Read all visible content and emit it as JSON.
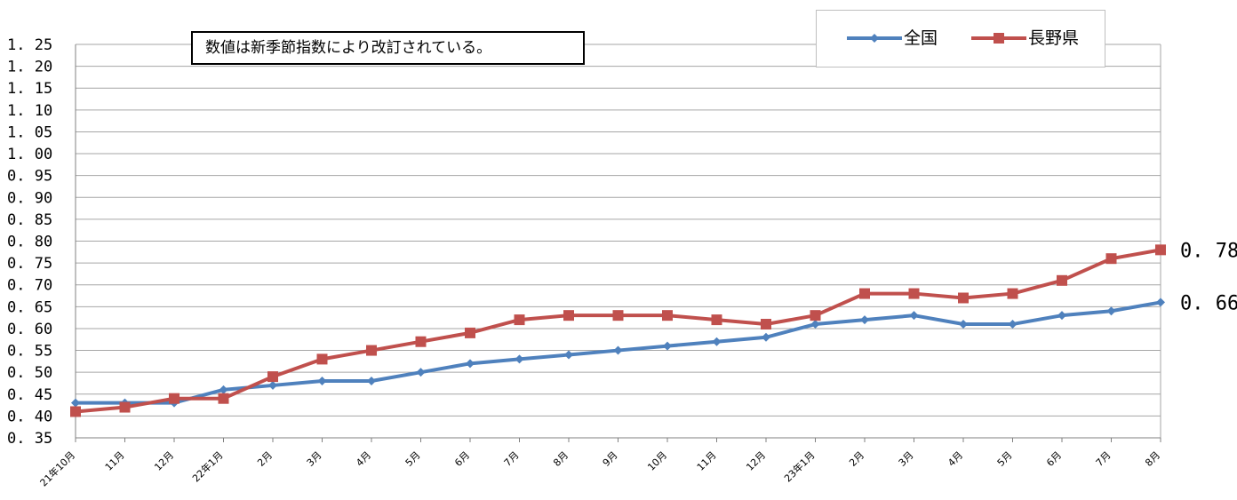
{
  "chart_data": {
    "type": "line",
    "title": "",
    "xlabel": "",
    "ylabel": "",
    "ylim": [
      0.35,
      1.25
    ],
    "ytick_step": 0.05,
    "grid": true,
    "legend_placement": "top-right",
    "annotation": "数値は新季節指数により改訂されている。",
    "categories": [
      "21年10月",
      "11月",
      "12月",
      "22年1月",
      "2月",
      "3月",
      "4月",
      "5月",
      "6月",
      "7月",
      "8月",
      "9月",
      "10月",
      "11月",
      "12月",
      "23年1月",
      "2月",
      "3月",
      "4月",
      "5月",
      "6月",
      "7月",
      "8月"
    ],
    "series": [
      {
        "name": "全国",
        "color": "#4f81bd",
        "marker": "diamond",
        "values": [
          0.43,
          0.43,
          0.43,
          0.46,
          0.47,
          0.48,
          0.48,
          0.5,
          0.52,
          0.53,
          0.54,
          0.55,
          0.56,
          0.57,
          0.58,
          0.61,
          0.62,
          0.63,
          0.61,
          0.61,
          0.63,
          0.64,
          0.66
        ],
        "end_label": "0. 66"
      },
      {
        "name": "長野県",
        "color": "#c0504d",
        "marker": "square",
        "values": [
          0.41,
          0.42,
          0.44,
          0.44,
          0.49,
          0.53,
          0.55,
          0.57,
          0.59,
          0.62,
          0.63,
          0.63,
          0.63,
          0.62,
          0.61,
          0.63,
          0.68,
          0.68,
          0.67,
          0.68,
          0.71,
          0.76,
          0.78
        ],
        "end_label": "0. 78"
      }
    ]
  }
}
